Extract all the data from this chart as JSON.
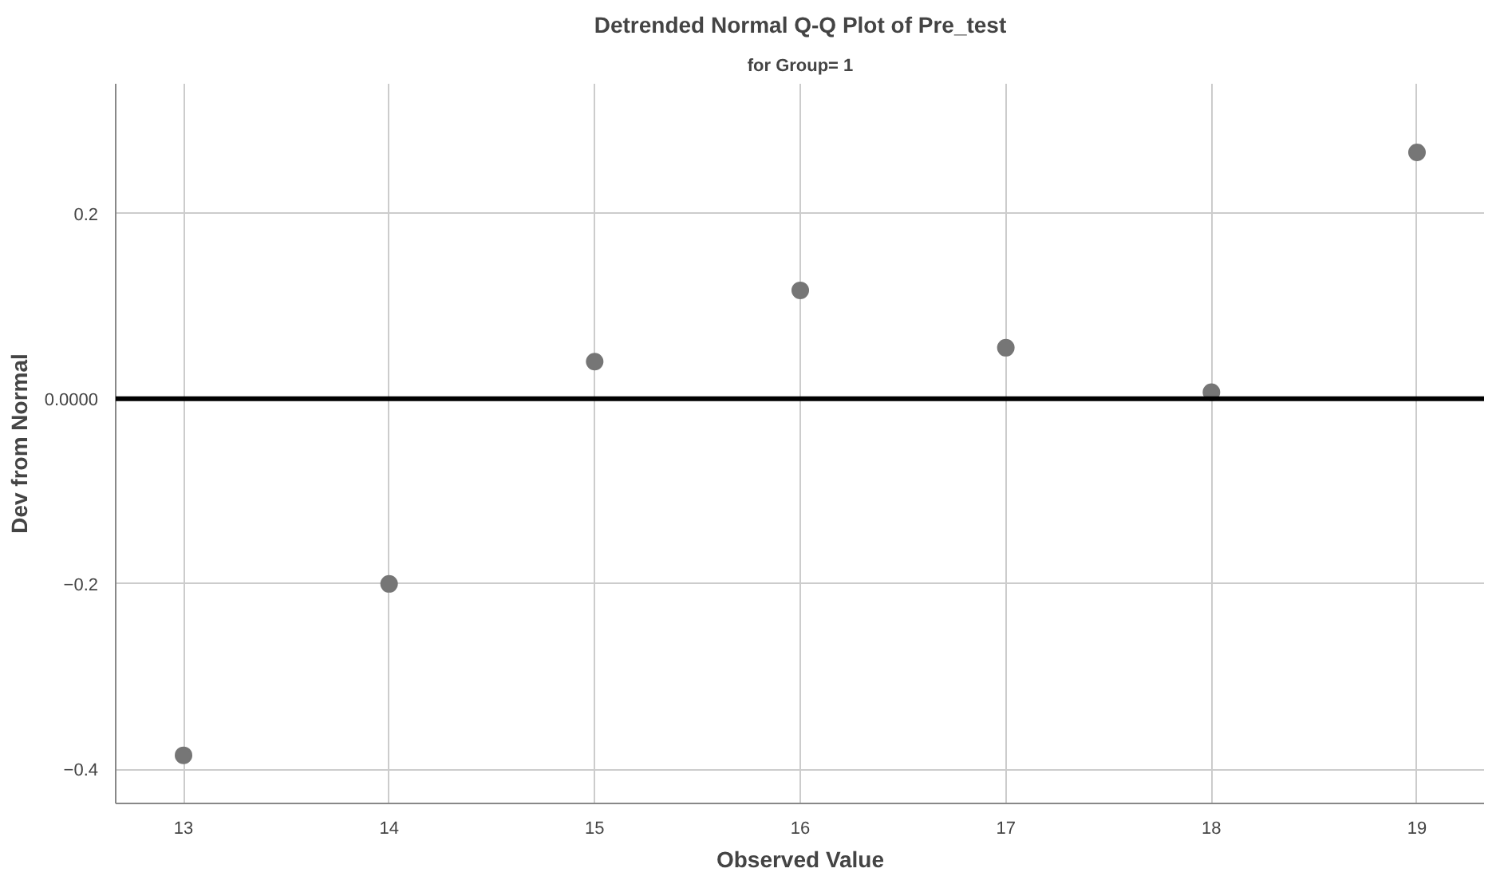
{
  "chart_data": {
    "type": "scatter",
    "title": "Detrended Normal Q-Q Plot of Pre_test",
    "subtitle": "for Group= 1",
    "xlabel": "Observed Value",
    "ylabel": "Dev from Normal",
    "x": [
      13,
      14,
      15,
      16,
      17,
      18,
      19
    ],
    "series": [
      {
        "color": "#767676",
        "values": [
          -0.385,
          -0.2,
          0.04,
          0.117,
          0.055,
          0.007,
          0.266
        ]
      }
    ],
    "xlim": [
      12.67,
      19.33
    ],
    "ylim": [
      -0.437,
      0.34
    ],
    "xticks": [
      13,
      14,
      15,
      16,
      17,
      18,
      19
    ],
    "yticks": [
      -0.4,
      -0.2,
      {
        "value": 0,
        "label": "0.0000"
      },
      0.2
    ],
    "ref_lines": [
      {
        "axis": "y",
        "value": 0,
        "color": "#000000"
      }
    ],
    "grid": true,
    "marker": "circle"
  }
}
